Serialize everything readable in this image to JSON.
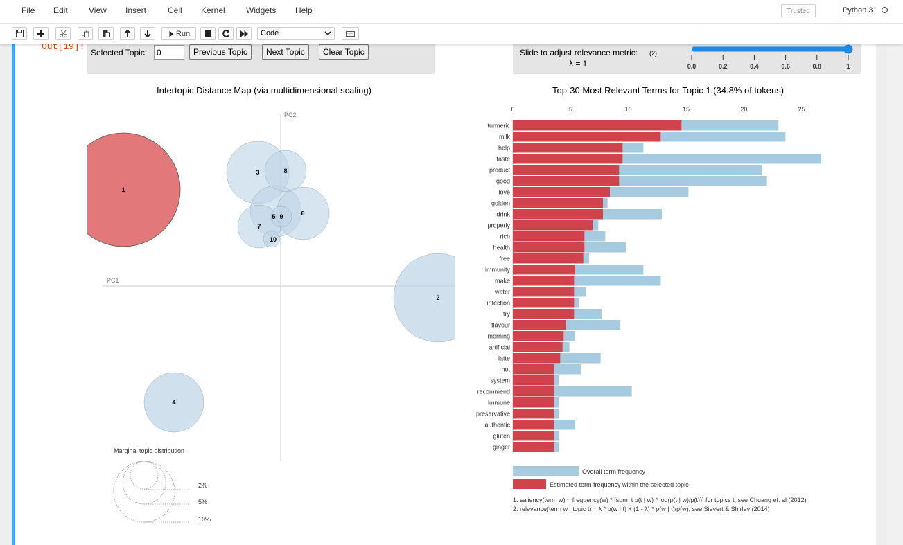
{
  "menu": [
    "File",
    "Edit",
    "View",
    "Insert",
    "Cell",
    "Kernel",
    "Widgets",
    "Help"
  ],
  "status": {
    "trusted": "Trusted",
    "kernel": "Python 3"
  },
  "toolbar": {
    "run_label": "Run",
    "cell_type": "Code"
  },
  "cell": {
    "out_prompt": "Out[19]:"
  },
  "topic_controls": {
    "selected_label": "Selected Topic:",
    "selected_value": "0",
    "prev": "Previous Topic",
    "next": "Next Topic",
    "clear": "Clear Topic"
  },
  "lambda_control": {
    "label": "Slide to adjust relevance metric:",
    "note": "(2)",
    "lambda_text": "λ = 1",
    "value": 1,
    "ticks": [
      "0.0",
      "0.2",
      "0.4",
      "0.6",
      "0.8",
      "1"
    ]
  },
  "topic_map": {
    "title": "Intertopic Distance Map (via multidimensional scaling)",
    "pc1": "PC1",
    "pc2": "PC2",
    "selected_topic": "1",
    "topics": [
      {
        "id": "1",
        "selected": true
      },
      {
        "id": "2"
      },
      {
        "id": "3"
      },
      {
        "id": "4"
      },
      {
        "id": "5"
      },
      {
        "id": "6"
      },
      {
        "id": "7"
      },
      {
        "id": "8"
      },
      {
        "id": "9"
      },
      {
        "id": "10"
      }
    ],
    "marginal": {
      "title": "Marginal topic distribution",
      "labels": [
        "2%",
        "5%",
        "10%"
      ]
    }
  },
  "bar_chart": {
    "title": "Top-30 Most Relevant Terms for Topic 1 (34.8% of tokens)",
    "legend_overall": "Overall term frequency",
    "legend_estimated": "Estimated term frequency within the selected topic",
    "footnote1": "1. saliency(term w) = frequency(w) * [sum_t p(t | w) * log(p(t | w)/p(t))] for topics t; see Chuang et. al (2012)",
    "footnote2": "2. relevance(term w | topic t) = λ * p(w | t) + (1 - λ) * p(w | t)/p(w); see Sievert & Shirley (2014)"
  },
  "chart_data": {
    "type": "bar",
    "orientation": "horizontal",
    "title": "Top-30 Most Relevant Terms for Topic 1 (34.8% of tokens)",
    "xlim": [
      0,
      27
    ],
    "xticks": [
      0,
      5,
      10,
      15,
      20,
      25
    ],
    "categories": [
      "turmeric",
      "milk",
      "help",
      "taste",
      "product",
      "good",
      "love",
      "golden",
      "drink",
      "properly",
      "rich",
      "health",
      "free",
      "immunity",
      "make",
      "water",
      "infection",
      "try",
      "flavour",
      "morning",
      "artificial",
      "latte",
      "hot",
      "system",
      "recommend",
      "immune",
      "preservative",
      "authentic",
      "gluten",
      "ginger"
    ],
    "series": [
      {
        "name": "Overall term frequency",
        "color": "#a6cbe1",
        "values": [
          23.0,
          23.6,
          11.3,
          26.7,
          21.6,
          22.0,
          15.2,
          8.2,
          12.9,
          7.4,
          8.0,
          9.8,
          6.6,
          11.3,
          12.8,
          6.3,
          5.7,
          7.7,
          9.3,
          5.4,
          4.9,
          7.6,
          5.9,
          4.0,
          10.3,
          4.0,
          4.0,
          5.4,
          4.0,
          4.0
        ]
      },
      {
        "name": "Estimated term frequency within the selected topic",
        "color": "#d0434d",
        "values": [
          14.6,
          12.8,
          9.5,
          9.5,
          9.2,
          9.2,
          8.4,
          7.8,
          7.8,
          6.9,
          6.2,
          6.2,
          6.1,
          5.4,
          5.3,
          5.3,
          5.3,
          5.3,
          4.6,
          4.4,
          4.3,
          4.1,
          3.6,
          3.6,
          3.6,
          3.6,
          3.6,
          3.6,
          3.6,
          3.6
        ]
      }
    ]
  },
  "colors": {
    "selected": "#e06c6e",
    "topic": "#bcd3e6",
    "bar_overall": "#a6cbe1",
    "bar_topic": "#d0434d",
    "accent": "#1e88e5",
    "cell_bar": "#42a5f5"
  }
}
